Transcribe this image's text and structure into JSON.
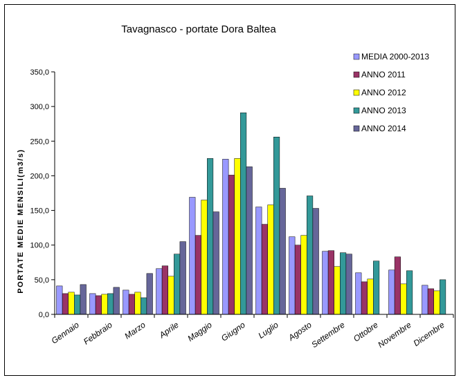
{
  "chart_data": {
    "type": "bar",
    "title": "Tavagnasco  - portate Dora Baltea",
    "xlabel": "",
    "ylabel": "PORTATE MEDIE MENSILI(m3/s)",
    "ylim": [
      0,
      350
    ],
    "yticks": [
      "0,0",
      "50,0",
      "100,0",
      "150,0",
      "200,0",
      "250,0",
      "300,0",
      "350,0"
    ],
    "grid": false,
    "legend_position": "top-right",
    "categories": [
      "Gennaio",
      "Febbraio",
      "Marzo",
      "Aprile",
      "Maggio",
      "Giugno",
      "Luglio",
      "Agosto",
      "Settembre",
      "Ottobre",
      "Novembre",
      "Dicembre"
    ],
    "series": [
      {
        "name": "MEDIA 2000-2013",
        "color": "#9999ff",
        "values": [
          41,
          30,
          35,
          66,
          169,
          224,
          155,
          112,
          91,
          60,
          64,
          42
        ]
      },
      {
        "name": "ANNO 2011",
        "color": "#993366",
        "values": [
          30,
          27,
          29,
          70,
          114,
          201,
          130,
          100,
          92,
          47,
          83,
          37
        ]
      },
      {
        "name": "ANNO 2012",
        "color": "#ffff00",
        "values": [
          32,
          29,
          32,
          55,
          165,
          225,
          158,
          114,
          69,
          51,
          44,
          34
        ]
      },
      {
        "name": "ANNO 2013",
        "color": "#339999",
        "values": [
          28,
          30,
          24,
          87,
          225,
          291,
          256,
          171,
          89,
          77,
          63,
          50
        ]
      },
      {
        "name": "ANNO 2014",
        "color": "#666699",
        "values": [
          43,
          39,
          59,
          105,
          148,
          213,
          182,
          153,
          87,
          null,
          null,
          null
        ]
      }
    ]
  }
}
